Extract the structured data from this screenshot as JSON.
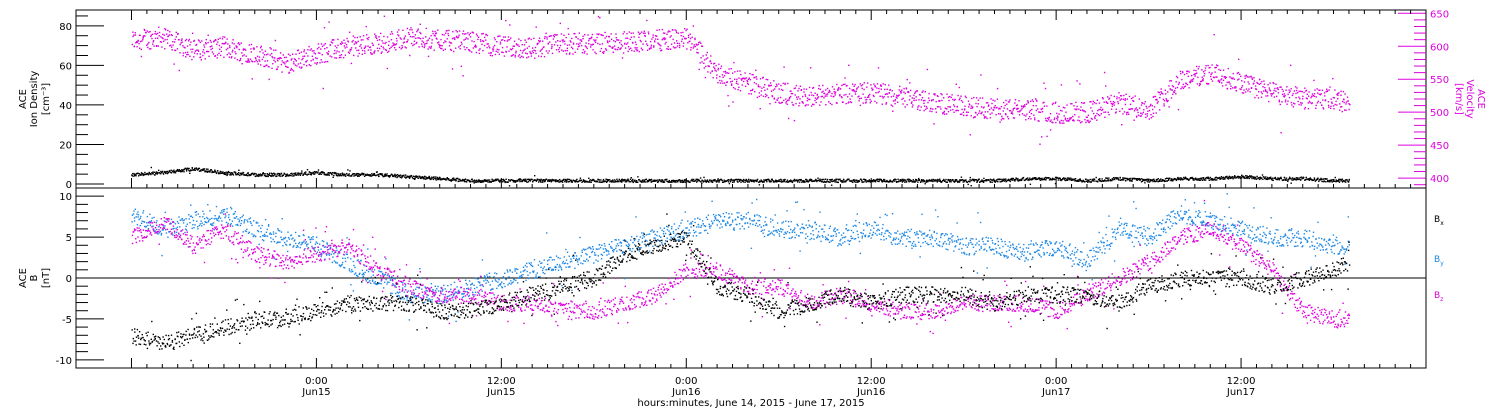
{
  "chart_data": [
    {
      "type": "scatter",
      "panel": "top",
      "ylabel_left": [
        "ACE",
        "Ion Density",
        "[cm⁻³]"
      ],
      "ylabel_right": [
        "ACE",
        "Velocity",
        "[km/s]"
      ],
      "ylim_left": [
        -2,
        88
      ],
      "ylim_right": [
        385,
        655
      ],
      "yticks_left": [
        0,
        20,
        40,
        60,
        80
      ],
      "yticks_right": [
        400,
        450,
        500,
        550,
        600,
        650
      ],
      "colors": {
        "density": "#000000",
        "velocity": "#dd00dd"
      },
      "series": [
        {
          "name": "Ion Density",
          "axis": "left",
          "color": "#000000",
          "x_hours": [
            0,
            2,
            4,
            6,
            8,
            10,
            12,
            14,
            16,
            18,
            20,
            22,
            24,
            26,
            28,
            30,
            32,
            34,
            36,
            38,
            40,
            42,
            44,
            46,
            48,
            50,
            52,
            54,
            56,
            58,
            60,
            62,
            64,
            66,
            68,
            70,
            72,
            74,
            76,
            78,
            79
          ],
          "values": [
            5,
            6,
            8,
            6,
            5,
            5,
            6,
            5,
            5,
            4,
            3,
            2,
            2,
            2,
            2,
            2,
            2,
            2,
            2,
            2,
            2,
            2,
            2,
            2,
            2,
            2,
            2,
            2,
            2,
            3,
            3,
            2,
            3,
            2,
            3,
            3,
            4,
            3,
            3,
            2,
            2
          ]
        },
        {
          "name": "Velocity",
          "axis": "right",
          "color": "#dd00dd",
          "x_hours": [
            0,
            2,
            4,
            6,
            8,
            10,
            12,
            14,
            16,
            18,
            20,
            22,
            24,
            26,
            28,
            30,
            32,
            34,
            36,
            38,
            40,
            42,
            44,
            46,
            48,
            50,
            52,
            54,
            56,
            58,
            60,
            62,
            64,
            66,
            68,
            70,
            72,
            74,
            76,
            78,
            79
          ],
          "values": [
            610,
            615,
            595,
            600,
            590,
            575,
            590,
            600,
            605,
            615,
            610,
            608,
            600,
            598,
            605,
            605,
            608,
            610,
            612,
            560,
            545,
            530,
            525,
            530,
            530,
            525,
            515,
            510,
            505,
            505,
            500,
            500,
            515,
            505,
            550,
            560,
            545,
            530,
            522,
            520,
            515
          ]
        }
      ]
    },
    {
      "type": "scatter",
      "panel": "bottom",
      "ylabel_left": [
        "ACE",
        "B",
        "[nT]"
      ],
      "ylim": [
        -11,
        11
      ],
      "yticks": [
        -10,
        -5,
        0,
        5,
        10
      ],
      "zero_line": true,
      "series": [
        {
          "name": "B_x",
          "color": "#000000",
          "x_hours": [
            0,
            2,
            4,
            6,
            8,
            10,
            12,
            14,
            16,
            18,
            20,
            22,
            24,
            26,
            28,
            30,
            32,
            34,
            36,
            38,
            40,
            42,
            44,
            46,
            48,
            50,
            52,
            54,
            56,
            58,
            60,
            62,
            64,
            66,
            68,
            70,
            72,
            74,
            76,
            78,
            79
          ],
          "values": [
            -7,
            -8,
            -7,
            -6,
            -5,
            -5,
            -4,
            -3,
            -3,
            -3,
            -4,
            -4,
            -3,
            -2,
            -1,
            0,
            3,
            4,
            5,
            -1,
            -2,
            -4,
            -3,
            -2,
            -3,
            -2,
            -2,
            -2,
            -3,
            -2,
            -2,
            -2,
            -3,
            -1,
            0,
            0,
            0,
            -1,
            0,
            1,
            2
          ]
        },
        {
          "name": "B_y",
          "color": "#1e88e5",
          "x_hours": [
            0,
            2,
            4,
            6,
            8,
            10,
            12,
            14,
            16,
            18,
            20,
            22,
            24,
            26,
            28,
            30,
            32,
            34,
            36,
            38,
            40,
            42,
            44,
            46,
            48,
            50,
            52,
            54,
            56,
            58,
            60,
            62,
            64,
            66,
            68,
            70,
            72,
            74,
            76,
            78,
            79
          ],
          "values": [
            8,
            6,
            7,
            8,
            6,
            5,
            4,
            2,
            0,
            -2,
            -2,
            -1,
            0,
            1,
            2,
            3,
            4,
            5,
            6,
            7,
            7,
            6,
            6,
            5,
            6,
            5,
            5,
            4,
            4,
            3,
            4,
            2,
            6,
            5,
            8,
            7,
            6,
            5,
            5,
            4,
            4
          ]
        },
        {
          "name": "B_z",
          "color": "#dd00dd",
          "x_hours": [
            0,
            2,
            4,
            6,
            8,
            10,
            12,
            14,
            16,
            18,
            20,
            22,
            24,
            26,
            28,
            30,
            32,
            34,
            36,
            38,
            40,
            42,
            44,
            46,
            48,
            50,
            52,
            54,
            56,
            58,
            60,
            62,
            64,
            66,
            68,
            70,
            72,
            74,
            76,
            78,
            79
          ],
          "values": [
            5,
            7,
            4,
            6,
            3,
            2,
            3,
            4,
            1,
            -1,
            -2,
            -2,
            -3,
            -3,
            -4,
            -4,
            -3,
            -2,
            1,
            1,
            -1,
            -1,
            -3,
            -2,
            -3,
            -4,
            -4,
            -3,
            -3,
            -3,
            -4,
            -2,
            0,
            2,
            5,
            6,
            4,
            1,
            -4,
            -5,
            -5
          ]
        }
      ],
      "legend": [
        "B_x",
        "B_y",
        "B_z"
      ],
      "legend_placement": "right"
    }
  ],
  "x_axis": {
    "tick_labels": [
      {
        "time": "0:00",
        "date": "Jun15"
      },
      {
        "time": "12:00",
        "date": "Jun15"
      },
      {
        "time": "0:00",
        "date": "Jun16"
      },
      {
        "time": "12:00",
        "date": "Jun16"
      },
      {
        "time": "0:00",
        "date": "Jun17"
      },
      {
        "time": "12:00",
        "date": "Jun17"
      }
    ],
    "tick_hours": [
      12,
      24,
      36,
      48,
      60,
      72
    ],
    "xlim_hours": [
      -3.6,
      84
    ],
    "title": "hours:minutes, June 14, 2015 - June 17, 2015"
  }
}
